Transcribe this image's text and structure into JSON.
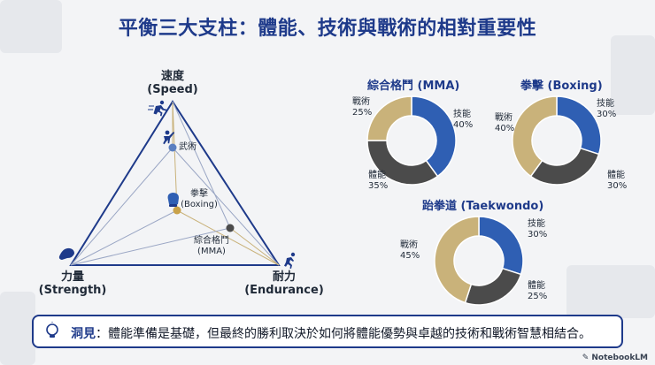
{
  "title": "平衡三大支柱：體能、技術與戰術的相對重要性",
  "triangle": {
    "vertices": {
      "speed": {
        "label": "速度",
        "sub": "(Speed)"
      },
      "strength": {
        "label": "力量",
        "sub": "(Strength)"
      },
      "endurance": {
        "label": "耐力",
        "sub": "(Endurance)"
      }
    },
    "points": [
      {
        "label": "武術",
        "sub": ""
      },
      {
        "label": "拳擊",
        "sub": "(Boxing)"
      },
      {
        "label": "綜合格鬥",
        "sub": "(MMA)"
      }
    ]
  },
  "chart_data": [
    {
      "type": "pie",
      "style": "donut",
      "title": "綜合格鬥 (MMA)",
      "categories": [
        "技能",
        "體能",
        "戰術"
      ],
      "values": [
        40,
        35,
        25
      ],
      "labels": [
        "40%",
        "35%",
        "25%"
      ]
    },
    {
      "type": "pie",
      "style": "donut",
      "title": "拳擊 (Boxing)",
      "categories": [
        "技能",
        "體能",
        "戰術"
      ],
      "values": [
        30,
        30,
        40
      ],
      "labels": [
        "30%",
        "30%",
        "40%"
      ]
    },
    {
      "type": "pie",
      "style": "donut",
      "title": "跆拳道 (Taekwondo)",
      "categories": [
        "技能",
        "體能",
        "戰術"
      ],
      "values": [
        30,
        25,
        45
      ],
      "labels": [
        "30%",
        "25%",
        "45%"
      ]
    }
  ],
  "colors": {
    "skill": "#2f5fb3",
    "physical": "#4b4b4b",
    "tactic": "#c9b27a",
    "accent": "#1e3a8a"
  },
  "insight": {
    "key": "洞見",
    "sep": "：",
    "text": "體能準備是基礎，但最終的勝利取決於如何將體能優勢與卓越的技術和戰術智慧相結合。"
  },
  "footer": "NotebookLM"
}
